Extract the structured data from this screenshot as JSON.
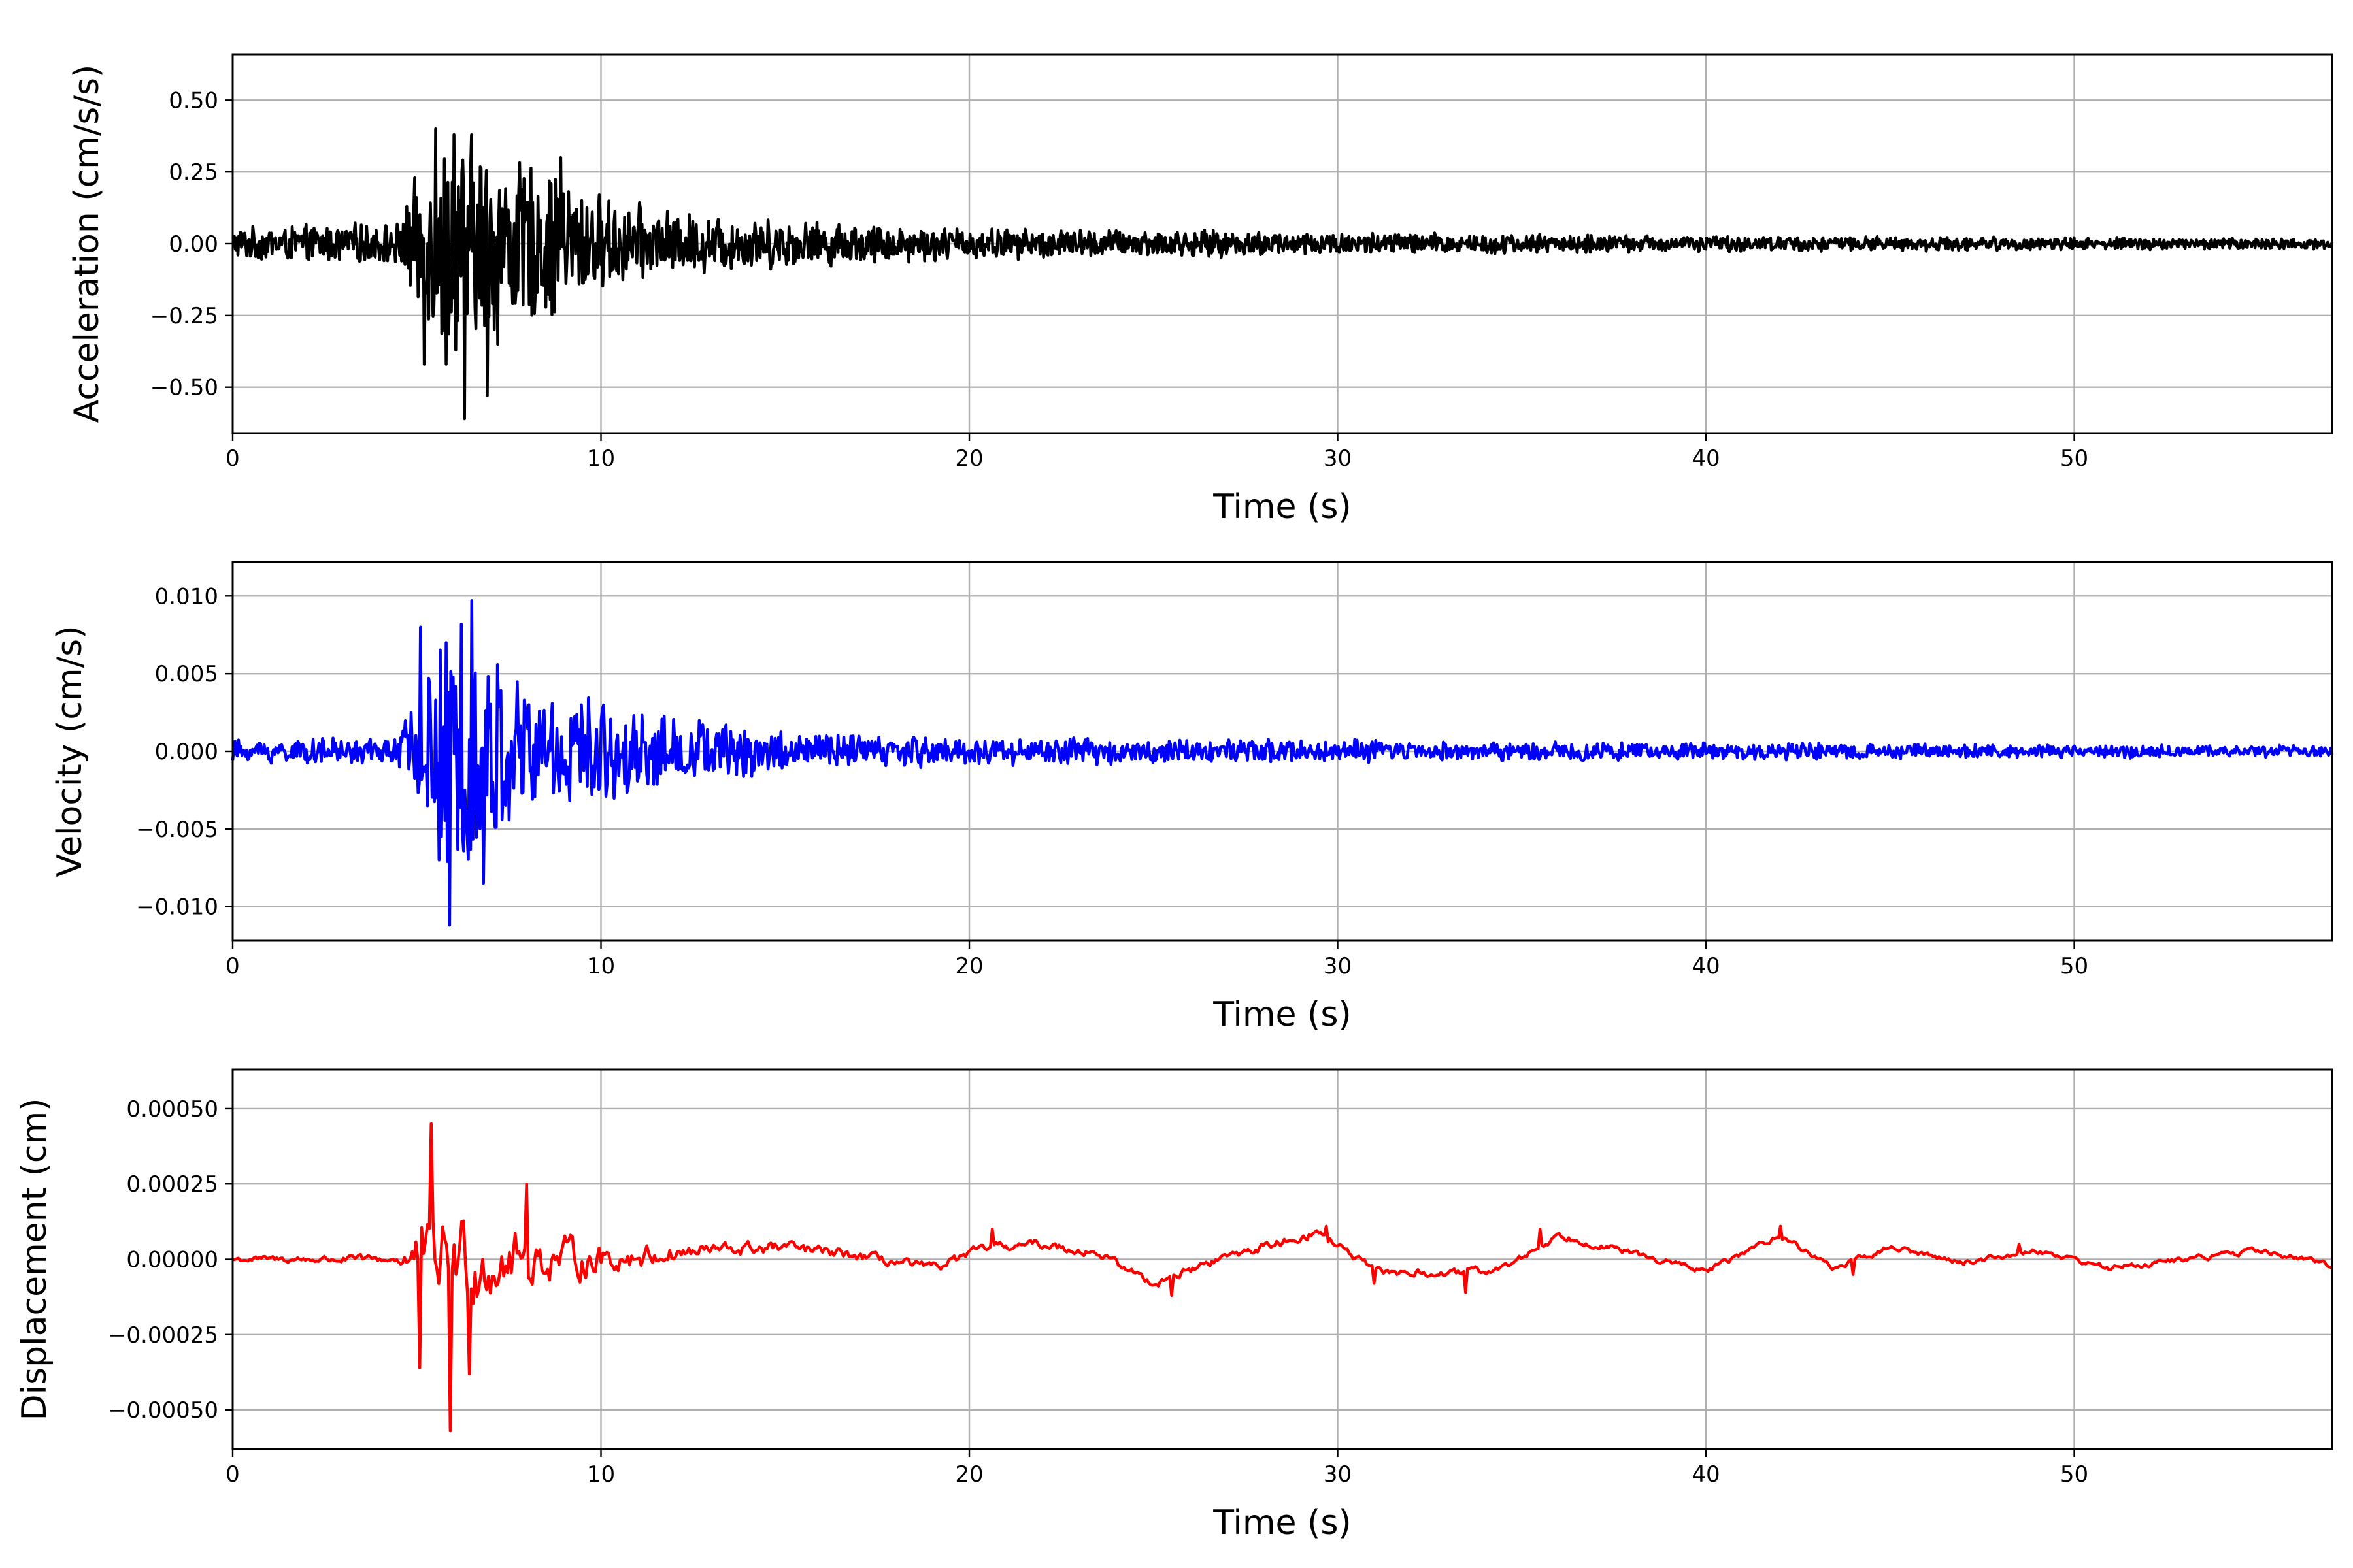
{
  "chart_data": [
    {
      "type": "line",
      "title": "",
      "xlabel": "Time (s)",
      "ylabel": "Acceleration (cm/s/s)",
      "xlim": [
        0,
        57
      ],
      "ylim": [
        -0.66,
        0.66
      ],
      "xticks": [
        0,
        10,
        20,
        30,
        40,
        50
      ],
      "xtick_labels": [
        "0",
        "10",
        "20",
        "30",
        "40",
        "50"
      ],
      "yticks": [
        -0.5,
        -0.25,
        0,
        0.25,
        0.5
      ],
      "ytick_labels": [
        "−0.50",
        "−0.25",
        "0.00",
        "0.25",
        "0.50"
      ],
      "grid": true,
      "color": "#000000",
      "envelope": {
        "t": [
          0,
          4.5,
          5.0,
          6.0,
          7.0,
          8.0,
          9.0,
          10.0,
          12.0,
          15.0,
          20.0,
          30.0,
          40.0,
          57.0
        ],
        "amp": [
          0.06,
          0.08,
          0.25,
          0.45,
          0.4,
          0.3,
          0.28,
          0.18,
          0.12,
          0.09,
          0.06,
          0.045,
          0.03,
          0.02
        ]
      },
      "extrema": [
        {
          "x": 6.3,
          "y": -0.61
        },
        {
          "x": 5.5,
          "y": 0.4
        },
        {
          "x": 6.0,
          "y": 0.38
        },
        {
          "x": 6.9,
          "y": -0.53
        },
        {
          "x": 5.8,
          "y": -0.42
        },
        {
          "x": 5.2,
          "y": -0.42
        },
        {
          "x": 8.9,
          "y": 0.3
        }
      ]
    },
    {
      "type": "line",
      "title": "",
      "xlabel": "Time (s)",
      "ylabel": "Velocity (cm/s)",
      "xlim": [
        0,
        57
      ],
      "ylim": [
        -0.0122,
        0.0122
      ],
      "xticks": [
        0,
        10,
        20,
        30,
        40,
        50
      ],
      "xtick_labels": [
        "0",
        "10",
        "20",
        "30",
        "40",
        "50"
      ],
      "yticks": [
        -0.01,
        -0.005,
        0,
        0.005,
        0.01
      ],
      "ytick_labels": [
        "−0.010",
        "−0.005",
        "0.000",
        "0.005",
        "0.010"
      ],
      "grid": true,
      "color": "#0000ff",
      "envelope": {
        "t": [
          0,
          4.5,
          5.0,
          6.0,
          7.0,
          8.0,
          9.0,
          10.0,
          12.0,
          15.0,
          20.0,
          30.0,
          40.0,
          57.0
        ],
        "amp": [
          0.0008,
          0.001,
          0.006,
          0.009,
          0.007,
          0.005,
          0.0045,
          0.0035,
          0.0025,
          0.0015,
          0.001,
          0.0008,
          0.0006,
          0.0004
        ]
      },
      "extrema": [
        {
          "x": 5.9,
          "y": -0.0112
        },
        {
          "x": 6.5,
          "y": 0.0097
        },
        {
          "x": 5.1,
          "y": 0.008
        },
        {
          "x": 6.2,
          "y": 0.0082
        },
        {
          "x": 6.8,
          "y": -0.0085
        },
        {
          "x": 5.6,
          "y": -0.007
        }
      ]
    },
    {
      "type": "line",
      "title": "",
      "xlabel": "Time (s)",
      "ylabel": "Displacement (cm)",
      "xlim": [
        0,
        57
      ],
      "ylim": [
        -0.00063,
        0.00063
      ],
      "xticks": [
        0,
        10,
        20,
        30,
        40,
        50
      ],
      "xtick_labels": [
        "0",
        "10",
        "20",
        "30",
        "40",
        "50"
      ],
      "yticks": [
        -0.0005,
        -0.00025,
        0,
        0.00025,
        0.0005
      ],
      "ytick_labels": [
        "−0.00050",
        "−0.00025",
        "0.00000",
        "0.00025",
        "0.00050"
      ],
      "grid": true,
      "color": "#ff0000",
      "envelope": {
        "t": [
          0,
          4.5,
          5.0,
          6.0,
          7.0,
          8.0,
          10.0,
          12.0,
          15.0,
          20.0,
          30.0,
          40.0,
          57.0
        ],
        "amp": [
          2e-05,
          3e-05,
          0.0002,
          0.00035,
          0.00025,
          0.00018,
          0.0001,
          6e-05,
          4e-05,
          3e-05,
          3e-05,
          2e-05,
          2e-05
        ]
      },
      "extrema": [
        {
          "x": 5.4,
          "y": 0.00045
        },
        {
          "x": 5.9,
          "y": -0.00057
        },
        {
          "x": 5.1,
          "y": -0.00036
        },
        {
          "x": 6.4,
          "y": -0.00038
        },
        {
          "x": 8.0,
          "y": 0.00025
        },
        {
          "x": 20.6,
          "y": 0.0001
        },
        {
          "x": 25.5,
          "y": -0.00012
        },
        {
          "x": 29.7,
          "y": 0.00011
        },
        {
          "x": 31.0,
          "y": -8e-05
        },
        {
          "x": 33.5,
          "y": -0.00011
        },
        {
          "x": 35.5,
          "y": 0.0001
        },
        {
          "x": 42.0,
          "y": 0.00011
        },
        {
          "x": 44.0,
          "y": -5e-05
        },
        {
          "x": 48.5,
          "y": 5e-05
        }
      ],
      "drift": {
        "t": [
          0,
          5,
          10,
          13,
          15,
          17,
          19,
          20.5,
          22,
          23.5,
          25,
          27,
          29.5,
          31,
          33,
          34.5,
          36,
          38,
          40,
          42,
          43.5,
          45,
          47,
          49,
          51,
          53,
          55,
          57
        ],
        "d": [
          0,
          0,
          0,
          3e-05,
          4e-05,
          1e-05,
          -3e-05,
          4e-05,
          5e-05,
          2e-05,
          -8e-05,
          1e-05,
          9e-05,
          -4e-05,
          -5e-05,
          -3e-05,
          8e-05,
          2e-05,
          -4e-05,
          8e-05,
          -3e-05,
          4e-05,
          -1e-05,
          3e-05,
          -3e-05,
          0.0,
          3e-05,
          -2e-05
        ]
      }
    }
  ]
}
